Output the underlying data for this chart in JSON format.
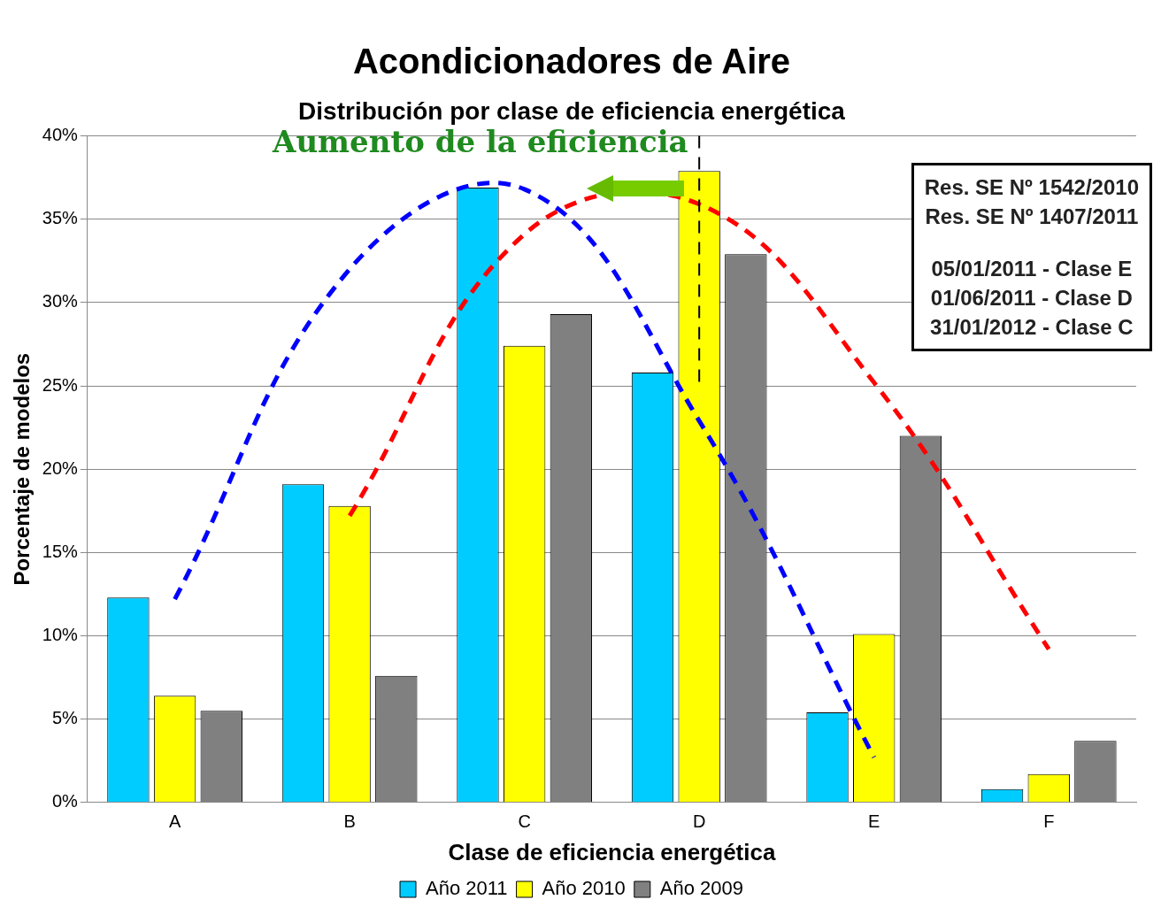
{
  "chart_data": {
    "type": "bar",
    "title": "Acondicionadores de Aire",
    "subtitle": "Distribución por clase de eficiencia energética",
    "xlabel": "Clase de eficiencia energética",
    "ylabel": "Porcentaje de modelos",
    "categories": [
      "A",
      "B",
      "C",
      "D",
      "E",
      "F"
    ],
    "series": [
      {
        "name": "Año 2011",
        "color": "#00ccff",
        "values": [
          12.3,
          19.1,
          36.9,
          25.8,
          5.4,
          0.8
        ]
      },
      {
        "name": "Año 2010",
        "color": "#ffff00",
        "values": [
          6.4,
          17.8,
          27.4,
          37.9,
          10.1,
          1.7
        ]
      },
      {
        "name": "Año 2009",
        "color": "#808080",
        "values": [
          5.5,
          7.6,
          29.3,
          32.9,
          22.0,
          3.7
        ]
      },
      {
        "type": "line",
        "color": "#0000ff",
        "line_style": "dashed",
        "values": [
          12.2,
          32,
          36.8,
          22.9,
          2.7,
          null
        ]
      },
      {
        "type": "line",
        "color": "#ff0000",
        "line_style": "dashed",
        "values": [
          null,
          17.2,
          34.1,
          35.9,
          25.2,
          9.2
        ]
      }
    ],
    "ylim": [
      0,
      40
    ],
    "yticks": [
      {
        "value": 0,
        "label": "0%"
      },
      {
        "value": 5,
        "label": "5%"
      },
      {
        "value": 10,
        "label": "10%"
      },
      {
        "value": 15,
        "label": "15%"
      },
      {
        "value": 20,
        "label": "20%"
      },
      {
        "value": 25,
        "label": "25%"
      },
      {
        "value": 30,
        "label": "30%"
      },
      {
        "value": 35,
        "label": "35%"
      },
      {
        "value": 40,
        "label": "40%"
      }
    ],
    "grid": "y",
    "legend": "bottom",
    "ref_lines": [
      {
        "axis": "x",
        "value": "D",
        "color": "#000000",
        "line_style": "dashed"
      }
    ],
    "annotations": [
      "Aumento de la eficiencia",
      "Res. SE Nº 1542/2010",
      "Res. SE Nº 1407/2011",
      "05/01/2011 - Clase E",
      "01/06/2011 - Clase D",
      "31/01/2012 - Clase C"
    ]
  }
}
